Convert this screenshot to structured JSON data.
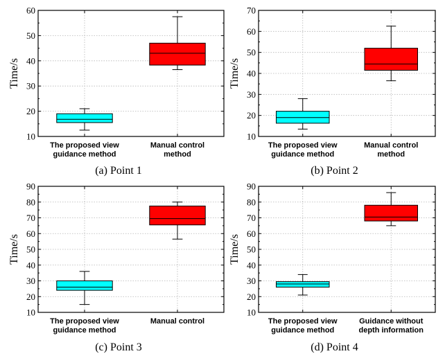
{
  "chart_data": [
    {
      "type": "box",
      "caption": "(a) Point 1",
      "ylabel": "Time/s",
      "ylim": [
        10,
        60
      ],
      "yticks": [
        10,
        20,
        30,
        40,
        50,
        60
      ],
      "grid": true,
      "categories": [
        [
          "The proposed view",
          "guidance method"
        ],
        [
          "Manual control",
          "method"
        ]
      ],
      "boxes": [
        {
          "color": "#00ffff",
          "whisker_low": 12.5,
          "q1": 15.5,
          "median": 16.8,
          "q3": 19,
          "whisker_high": 21
        },
        {
          "color": "#ff0000",
          "whisker_low": 36.5,
          "q1": 38.3,
          "median": 43,
          "q3": 47,
          "whisker_high": 57.5
        }
      ]
    },
    {
      "type": "box",
      "caption": "(b) Point 2",
      "ylabel": "Time/s",
      "ylim": [
        10,
        70
      ],
      "yticks": [
        10,
        20,
        30,
        40,
        50,
        60,
        70
      ],
      "grid": true,
      "categories": [
        [
          "The proposed view",
          "guidance method"
        ],
        [
          "Manual control",
          "method"
        ]
      ],
      "boxes": [
        {
          "color": "#00ffff",
          "whisker_low": 13.5,
          "q1": 16.3,
          "median": 19,
          "q3": 22,
          "whisker_high": 28
        },
        {
          "color": "#ff0000",
          "whisker_low": 36.5,
          "q1": 41.5,
          "median": 44.5,
          "q3": 52,
          "whisker_high": 62.5
        }
      ]
    },
    {
      "type": "box",
      "caption": "(c) Point 3",
      "ylabel": "Time/s",
      "ylim": [
        10,
        90
      ],
      "yticks": [
        10,
        20,
        30,
        40,
        50,
        60,
        70,
        80,
        90
      ],
      "grid": true,
      "categories": [
        [
          "The proposed view",
          "guidance method"
        ],
        [
          "Manual control"
        ]
      ],
      "boxes": [
        {
          "color": "#00ffff",
          "whisker_low": 15,
          "q1": 24,
          "median": 26,
          "q3": 30,
          "whisker_high": 36
        },
        {
          "color": "#ff0000",
          "whisker_low": 56.5,
          "q1": 65.5,
          "median": 69.5,
          "q3": 77.5,
          "whisker_high": 80
        }
      ]
    },
    {
      "type": "box",
      "caption": "(d) Point 4",
      "ylabel": "Time/s",
      "ylim": [
        10,
        90
      ],
      "yticks": [
        10,
        20,
        30,
        40,
        50,
        60,
        70,
        80,
        90
      ],
      "grid": true,
      "categories": [
        [
          "The proposed view",
          "guidance method"
        ],
        [
          "Guidance without",
          "depth information"
        ]
      ],
      "boxes": [
        {
          "color": "#00ffff",
          "whisker_low": 21,
          "q1": 26,
          "median": 28,
          "q3": 29.5,
          "whisker_high": 34
        },
        {
          "color": "#ff0000",
          "whisker_low": 65,
          "q1": 68,
          "median": 70.5,
          "q3": 78,
          "whisker_high": 86
        }
      ]
    }
  ]
}
